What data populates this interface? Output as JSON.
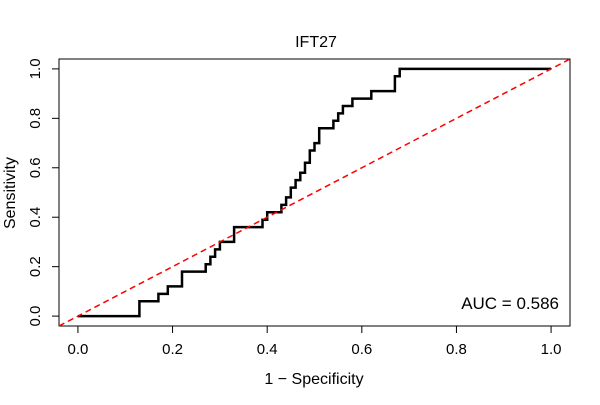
{
  "chart_data": {
    "type": "line",
    "title": "IFT27",
    "xlabel": "1 − Specificity",
    "ylabel": "Sensitivity",
    "xlim": [
      -0.04,
      1.04
    ],
    "ylim": [
      -0.04,
      1.04
    ],
    "x_ticks": [
      0.0,
      0.2,
      0.4,
      0.6,
      0.8,
      1.0
    ],
    "x_tick_labels": [
      "0.0",
      "0.2",
      "0.4",
      "0.6",
      "0.8",
      "1.0"
    ],
    "y_ticks": [
      0.0,
      0.2,
      0.4,
      0.6,
      0.8,
      1.0
    ],
    "y_tick_labels": [
      "0.0",
      "0.2",
      "0.4",
      "0.6",
      "0.8",
      "1.0"
    ],
    "grid": false,
    "legend": "none",
    "annotation": "AUC = 0.586",
    "series": [
      {
        "style": "solid",
        "color": "#000000",
        "x": [
          0.0,
          0.13,
          0.13,
          0.17,
          0.17,
          0.19,
          0.19,
          0.22,
          0.22,
          0.27,
          0.27,
          0.28,
          0.28,
          0.29,
          0.29,
          0.3,
          0.3,
          0.33,
          0.33,
          0.39,
          0.39,
          0.4,
          0.4,
          0.43,
          0.43,
          0.44,
          0.44,
          0.45,
          0.45,
          0.46,
          0.46,
          0.47,
          0.47,
          0.48,
          0.48,
          0.49,
          0.49,
          0.5,
          0.5,
          0.51,
          0.51,
          0.54,
          0.54,
          0.55,
          0.55,
          0.56,
          0.56,
          0.58,
          0.58,
          0.62,
          0.62,
          0.67,
          0.67,
          0.68,
          0.68,
          1.0
        ],
        "y": [
          0.0,
          0.0,
          0.06,
          0.06,
          0.09,
          0.09,
          0.12,
          0.12,
          0.18,
          0.18,
          0.21,
          0.21,
          0.24,
          0.24,
          0.27,
          0.27,
          0.3,
          0.3,
          0.36,
          0.36,
          0.39,
          0.39,
          0.42,
          0.42,
          0.45,
          0.45,
          0.48,
          0.48,
          0.52,
          0.52,
          0.55,
          0.55,
          0.58,
          0.58,
          0.62,
          0.62,
          0.67,
          0.67,
          0.7,
          0.7,
          0.76,
          0.76,
          0.79,
          0.79,
          0.82,
          0.82,
          0.85,
          0.85,
          0.88,
          0.88,
          0.91,
          0.91,
          0.97,
          0.97,
          1.0,
          1.0
        ]
      },
      {
        "style": "dashed",
        "color": "#ff0000",
        "x": [
          -0.04,
          1.04
        ],
        "y": [
          -0.04,
          1.04
        ]
      }
    ]
  }
}
